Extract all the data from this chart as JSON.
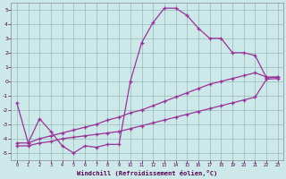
{
  "xlabel": "Windchill (Refroidissement éolien,°C)",
  "hours": [
    0,
    1,
    2,
    3,
    4,
    5,
    6,
    7,
    8,
    9,
    10,
    11,
    12,
    13,
    14,
    15,
    16,
    17,
    18,
    19,
    20,
    21,
    22,
    23
  ],
  "line_max": [
    -1.5,
    -4.3,
    -2.6,
    -3.5,
    -4.5,
    -5.0,
    -4.5,
    -4.6,
    -4.4,
    -4.4,
    0.0,
    2.7,
    4.1,
    5.1,
    5.1,
    4.6,
    3.7,
    3.0,
    3.0,
    2.0,
    2.0,
    1.8,
    0.25,
    0.3
  ],
  "line_mid": [
    -4.3,
    -4.3,
    -4.0,
    -3.8,
    -3.6,
    -3.4,
    -3.2,
    -3.0,
    -2.7,
    -2.5,
    -2.2,
    -2.0,
    -1.7,
    -1.4,
    -1.1,
    -0.8,
    -0.5,
    -0.2,
    0.0,
    0.2,
    0.4,
    0.6,
    0.3,
    0.3
  ],
  "line_min": [
    -4.5,
    -4.5,
    -4.3,
    -4.2,
    -4.0,
    -3.9,
    -3.8,
    -3.7,
    -3.6,
    -3.5,
    -3.3,
    -3.1,
    -2.9,
    -2.7,
    -2.5,
    -2.3,
    -2.1,
    -1.9,
    -1.7,
    -1.5,
    -1.3,
    -1.1,
    0.15,
    0.2
  ],
  "line_color": "#993399",
  "bg_color": "#cce8e8",
  "grid_color": "#99bbbb",
  "ylim": [
    -5.5,
    5.5
  ],
  "xlim": [
    -0.5,
    23.5
  ],
  "yticks": [
    -5,
    -4,
    -3,
    -2,
    -1,
    0,
    1,
    2,
    3,
    4,
    5
  ],
  "xticks": [
    0,
    1,
    2,
    3,
    4,
    5,
    6,
    7,
    8,
    9,
    10,
    11,
    12,
    13,
    14,
    15,
    16,
    17,
    18,
    19,
    20,
    21,
    22,
    23
  ]
}
